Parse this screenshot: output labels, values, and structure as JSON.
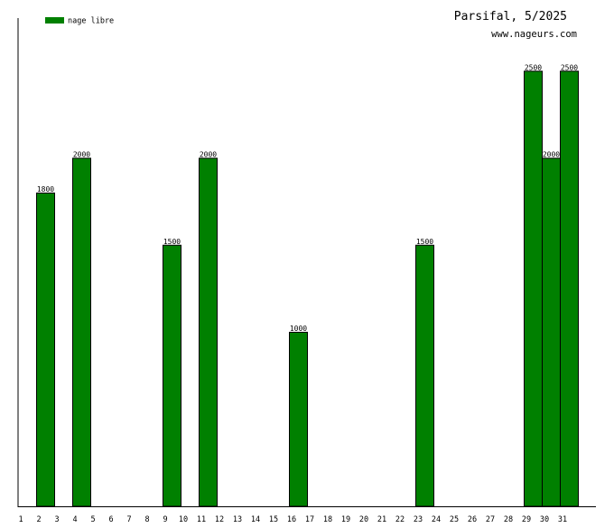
{
  "chart_data": {
    "type": "bar",
    "title": "Parsifal, 5/2025",
    "subtitle": "www.nageurs.com",
    "legend": {
      "placement": "top-left",
      "entries": [
        {
          "label": "nage libre",
          "color": "#008000"
        }
      ]
    },
    "xlabel": "",
    "ylabel": "",
    "ylim": [
      0,
      2800
    ],
    "grid": false,
    "categories": [
      "1",
      "2",
      "3",
      "4",
      "5",
      "6",
      "7",
      "8",
      "9",
      "10",
      "11",
      "12",
      "13",
      "14",
      "15",
      "16",
      "17",
      "18",
      "19",
      "20",
      "21",
      "22",
      "23",
      "24",
      "25",
      "26",
      "27",
      "28",
      "29",
      "30",
      "31"
    ],
    "series": [
      {
        "name": "nage libre",
        "color": "#008000",
        "values": [
          0,
          1800,
          0,
          2000,
          0,
          0,
          0,
          0,
          1500,
          0,
          2000,
          0,
          0,
          0,
          0,
          1000,
          0,
          0,
          0,
          0,
          0,
          0,
          1500,
          0,
          0,
          0,
          0,
          0,
          2500,
          2000,
          2500
        ]
      }
    ]
  }
}
